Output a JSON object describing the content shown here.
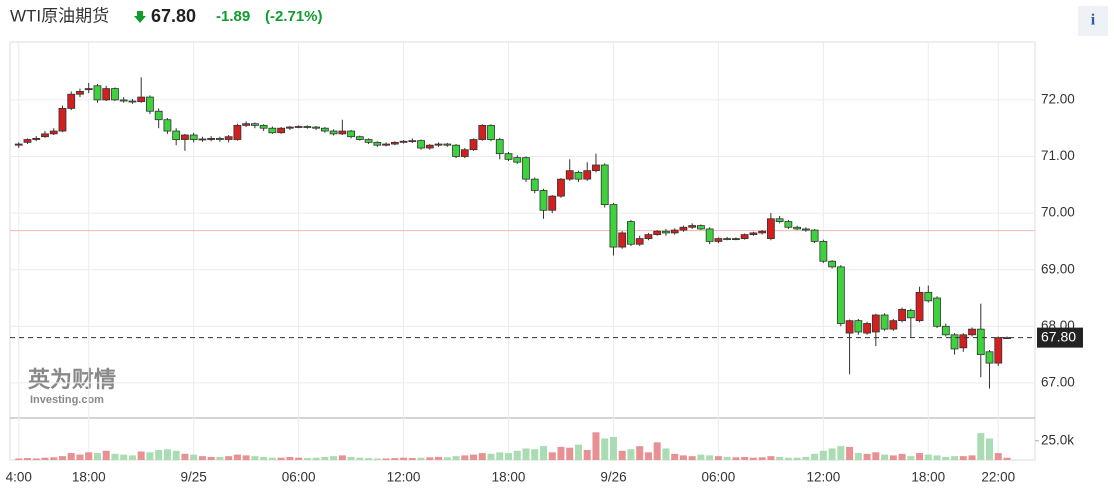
{
  "header": {
    "title": "WTI原油期货",
    "price": "67.80",
    "change": "-1.89",
    "change_pct": "(-2.71%)",
    "info": "i",
    "watermark_cn": "英为财情",
    "watermark_en": "Investing.com"
  },
  "chart_data": {
    "type": "candlestick",
    "xlim": [
      -0.5,
      58.1
    ],
    "xticks": [
      {
        "value": 0,
        "label": "4:00"
      },
      {
        "value": 4,
        "label": "18:00"
      },
      {
        "value": 10,
        "label": "9/25"
      },
      {
        "value": 16,
        "label": "06:00"
      },
      {
        "value": 22,
        "label": "12:00"
      },
      {
        "value": 28,
        "label": "18:00"
      },
      {
        "value": 34,
        "label": "9/26"
      },
      {
        "value": 40,
        "label": "06:00"
      },
      {
        "value": 46,
        "label": "12:00"
      },
      {
        "value": 52,
        "label": "18:00"
      },
      {
        "value": 56,
        "label": "22:00"
      }
    ],
    "ylim": [
      66.38,
      72.97
    ],
    "yticks": [
      {
        "value": 67,
        "label": "67.00"
      },
      {
        "value": 68,
        "label": "68.00"
      },
      {
        "value": 69,
        "label": "69.00"
      },
      {
        "value": 70,
        "label": "70.00"
      },
      {
        "value": 71,
        "label": "71.00"
      },
      {
        "value": 72,
        "label": "72.00"
      }
    ],
    "volume_ylim": [
      0,
      52000
    ],
    "volume_yticks": [
      {
        "value": 25000,
        "label": "25.0k"
      }
    ],
    "last": {
      "value": 67.8,
      "label": "67.80"
    },
    "prev_close": 69.69,
    "up_color": "#d21f1f",
    "down_color": "#3fd23f",
    "up_volume_color": "#e89094",
    "down_volume_color": "#a9dcb3",
    "grid": true,
    "x": [
      0,
      0.5,
      1,
      1.5,
      2,
      2.5,
      3,
      3.5,
      4,
      4.5,
      5,
      5.5,
      6,
      6.5,
      7,
      7.5,
      8,
      8.5,
      9,
      9.5,
      10,
      10.5,
      11,
      11.5,
      12,
      12.5,
      13,
      13.5,
      14,
      14.5,
      15,
      15.5,
      16,
      16.5,
      17,
      17.5,
      18,
      18.5,
      19,
      19.5,
      20,
      20.5,
      21,
      21.5,
      22,
      22.5,
      23,
      23.5,
      24,
      24.5,
      25,
      25.5,
      26,
      26.5,
      27,
      27.5,
      28,
      28.5,
      29,
      29.5,
      30,
      30.5,
      31,
      31.5,
      32,
      32.5,
      33,
      33.5,
      34,
      34.5,
      35,
      35.5,
      36,
      36.5,
      37,
      37.5,
      38,
      38.5,
      39,
      39.5,
      40,
      40.5,
      41,
      41.5,
      42,
      42.5,
      43,
      43.5,
      44,
      44.5,
      45,
      45.5,
      46,
      46.5,
      47,
      47.5,
      48,
      48.5,
      49,
      49.5,
      50,
      50.5,
      51,
      51.5,
      52,
      52.5,
      53,
      53.5,
      54,
      54.5,
      55,
      55.5,
      56,
      56.5
    ],
    "ohlc": [
      [
        71.2,
        71.25,
        71.15,
        71.22
      ],
      [
        71.25,
        71.32,
        71.22,
        71.3
      ],
      [
        71.3,
        71.36,
        71.27,
        71.32
      ],
      [
        71.35,
        71.45,
        71.33,
        71.4
      ],
      [
        71.4,
        71.5,
        71.38,
        71.45
      ],
      [
        71.45,
        71.9,
        71.43,
        71.85
      ],
      [
        71.85,
        72.15,
        71.82,
        72.1
      ],
      [
        72.1,
        72.2,
        72.05,
        72.15
      ],
      [
        72.18,
        72.3,
        72.12,
        72.2
      ],
      [
        72.25,
        72.28,
        71.95,
        72.0
      ],
      [
        72.0,
        72.25,
        71.98,
        72.2
      ],
      [
        72.2,
        72.22,
        71.98,
        72.0
      ],
      [
        72.0,
        72.05,
        71.95,
        71.98
      ],
      [
        71.98,
        72.02,
        71.93,
        71.97
      ],
      [
        71.97,
        72.4,
        71.95,
        72.05
      ],
      [
        72.05,
        72.08,
        71.75,
        71.8
      ],
      [
        71.8,
        71.85,
        71.5,
        71.65
      ],
      [
        71.65,
        71.68,
        71.4,
        71.45
      ],
      [
        71.45,
        71.5,
        71.2,
        71.3
      ],
      [
        71.3,
        71.4,
        71.1,
        71.38
      ],
      [
        71.38,
        71.42,
        71.25,
        71.3
      ],
      [
        71.3,
        71.35,
        71.26,
        71.31
      ],
      [
        71.3,
        71.36,
        71.27,
        71.32
      ],
      [
        71.32,
        71.35,
        71.26,
        71.3
      ],
      [
        71.3,
        71.38,
        71.25,
        71.35
      ],
      [
        71.3,
        71.58,
        71.28,
        71.55
      ],
      [
        71.55,
        71.62,
        71.52,
        71.58
      ],
      [
        71.58,
        71.6,
        71.5,
        71.55
      ],
      [
        71.55,
        71.57,
        71.45,
        71.5
      ],
      [
        71.5,
        71.53,
        71.4,
        71.42
      ],
      [
        71.42,
        71.52,
        71.4,
        71.5
      ],
      [
        71.5,
        71.54,
        71.47,
        71.52
      ],
      [
        71.52,
        71.55,
        71.5,
        71.53
      ],
      [
        71.53,
        71.55,
        71.49,
        71.52
      ],
      [
        71.52,
        71.54,
        71.47,
        71.5
      ],
      [
        71.5,
        71.52,
        71.42,
        71.45
      ],
      [
        71.45,
        71.48,
        71.37,
        71.4
      ],
      [
        71.4,
        71.65,
        71.38,
        71.45
      ],
      [
        71.45,
        71.47,
        71.32,
        71.35
      ],
      [
        71.35,
        71.37,
        71.28,
        71.3
      ],
      [
        71.3,
        71.32,
        71.22,
        71.25
      ],
      [
        71.25,
        71.27,
        71.17,
        71.2
      ],
      [
        71.2,
        71.25,
        71.18,
        71.22
      ],
      [
        71.22,
        71.27,
        71.2,
        71.25
      ],
      [
        71.25,
        71.29,
        71.23,
        71.27
      ],
      [
        71.27,
        71.32,
        71.24,
        71.28
      ],
      [
        71.28,
        71.3,
        71.12,
        71.15
      ],
      [
        71.15,
        71.22,
        71.12,
        71.2
      ],
      [
        71.2,
        71.25,
        71.17,
        71.22
      ],
      [
        71.22,
        71.24,
        71.17,
        71.2
      ],
      [
        71.2,
        71.22,
        70.97,
        71.0
      ],
      [
        71.0,
        71.15,
        70.97,
        71.12
      ],
      [
        71.12,
        71.32,
        71.1,
        71.3
      ],
      [
        71.3,
        71.57,
        71.28,
        71.55
      ],
      [
        71.55,
        71.57,
        71.27,
        71.3
      ],
      [
        71.3,
        71.33,
        70.95,
        71.05
      ],
      [
        71.05,
        71.08,
        70.92,
        70.95
      ],
      [
        70.98,
        71.02,
        70.87,
        70.9
      ],
      [
        70.98,
        71.0,
        70.55,
        70.6
      ],
      [
        70.6,
        70.63,
        70.35,
        70.4
      ],
      [
        70.4,
        70.43,
        69.9,
        70.05
      ],
      [
        70.05,
        70.32,
        70.0,
        70.3
      ],
      [
        70.3,
        70.62,
        70.27,
        70.6
      ],
      [
        70.6,
        70.95,
        70.57,
        70.75
      ],
      [
        70.72,
        70.75,
        70.55,
        70.6
      ],
      [
        70.6,
        70.9,
        70.57,
        70.75
      ],
      [
        70.75,
        71.05,
        70.72,
        70.85
      ],
      [
        70.85,
        70.88,
        70.1,
        70.15
      ],
      [
        70.15,
        70.18,
        69.25,
        69.4
      ],
      [
        69.4,
        69.68,
        69.37,
        69.65
      ],
      [
        69.85,
        69.88,
        69.42,
        69.45
      ],
      [
        69.45,
        69.6,
        69.42,
        69.55
      ],
      [
        69.55,
        69.65,
        69.52,
        69.62
      ],
      [
        69.62,
        69.7,
        69.6,
        69.68
      ],
      [
        69.68,
        69.72,
        69.6,
        69.65
      ],
      [
        69.65,
        69.73,
        69.62,
        69.7
      ],
      [
        69.7,
        69.78,
        69.67,
        69.75
      ],
      [
        69.75,
        69.82,
        69.72,
        69.78
      ],
      [
        69.78,
        69.8,
        69.7,
        69.72
      ],
      [
        69.72,
        69.75,
        69.45,
        69.5
      ],
      [
        69.5,
        69.57,
        69.47,
        69.55
      ],
      [
        69.55,
        69.58,
        69.52,
        69.54
      ],
      [
        69.54,
        69.57,
        69.52,
        69.55
      ],
      [
        69.55,
        69.64,
        69.53,
        69.62
      ],
      [
        69.62,
        69.67,
        69.6,
        69.65
      ],
      [
        69.65,
        69.7,
        69.62,
        69.68
      ],
      [
        69.55,
        70.0,
        69.52,
        69.9
      ],
      [
        69.9,
        69.95,
        69.82,
        69.85
      ],
      [
        69.85,
        69.88,
        69.72,
        69.75
      ],
      [
        69.75,
        69.78,
        69.7,
        69.72
      ],
      [
        69.72,
        69.75,
        69.67,
        69.7
      ],
      [
        69.7,
        69.72,
        69.47,
        69.5
      ],
      [
        69.5,
        69.53,
        69.12,
        69.15
      ],
      [
        69.15,
        69.17,
        69.02,
        69.05
      ],
      [
        69.05,
        69.08,
        68.0,
        68.05
      ],
      [
        67.88,
        68.12,
        67.15,
        68.1
      ],
      [
        68.1,
        68.13,
        67.85,
        67.9
      ],
      [
        67.88,
        68.08,
        67.85,
        68.05
      ],
      [
        67.9,
        68.22,
        67.65,
        68.2
      ],
      [
        68.2,
        68.23,
        67.92,
        67.95
      ],
      [
        67.95,
        68.13,
        67.92,
        68.1
      ],
      [
        68.1,
        68.33,
        68.07,
        68.3
      ],
      [
        68.28,
        68.31,
        67.8,
        68.15
      ],
      [
        68.1,
        68.7,
        68.07,
        68.6
      ],
      [
        68.6,
        68.72,
        68.42,
        68.45
      ],
      [
        68.5,
        68.53,
        67.97,
        68.0
      ],
      [
        68.0,
        68.05,
        67.82,
        67.85
      ],
      [
        67.85,
        67.88,
        67.5,
        67.6
      ],
      [
        67.62,
        67.88,
        67.55,
        67.85
      ],
      [
        67.85,
        67.98,
        67.82,
        67.95
      ],
      [
        67.95,
        68.4,
        67.1,
        67.5
      ],
      [
        67.55,
        67.58,
        66.9,
        67.35
      ],
      [
        67.35,
        67.82,
        67.3,
        67.8
      ],
      [
        67.8,
        67.82,
        67.78,
        67.8
      ]
    ],
    "volume": [
      2000,
      2500,
      2000,
      3000,
      3500,
      5000,
      9000,
      7000,
      10000,
      9000,
      12000,
      8000,
      7000,
      6000,
      11000,
      10000,
      13000,
      14000,
      12000,
      8000,
      7000,
      5000,
      4000,
      4000,
      5000,
      7000,
      6000,
      5000,
      4000,
      3000,
      3000,
      4000,
      3000,
      2500,
      3000,
      4000,
      5000,
      6000,
      4000,
      3000,
      2500,
      2000,
      2000,
      2500,
      3000,
      2500,
      3000,
      3500,
      4000,
      3500,
      5000,
      6000,
      7000,
      9000,
      8000,
      10000,
      9000,
      12000,
      15000,
      14000,
      18000,
      10000,
      17000,
      16000,
      20000,
      13000,
      36000,
      28000,
      30000,
      12000,
      14000,
      18000,
      10000,
      23000,
      15000,
      8000,
      6000,
      5000,
      7000,
      6000,
      5000,
      4000,
      3500,
      4000,
      3000,
      3500,
      5000,
      4000,
      3000,
      3000,
      4000,
      8000,
      12000,
      15000,
      18000,
      17000,
      9000,
      8000,
      10000,
      7000,
      6000,
      8000,
      5000,
      9000,
      7000,
      6000,
      4000,
      5000,
      5000,
      6000,
      35000,
      28000,
      9000,
      3000
    ]
  }
}
